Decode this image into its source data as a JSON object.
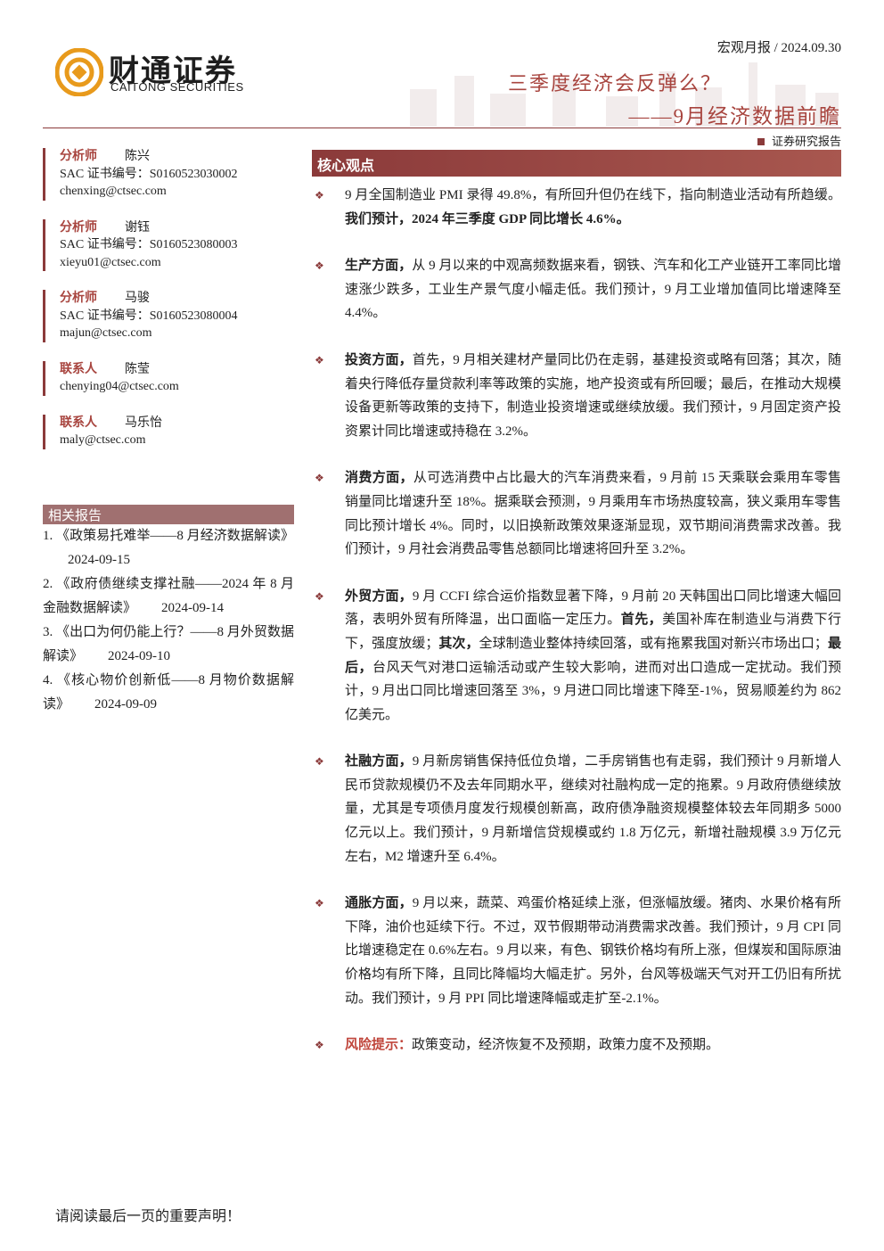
{
  "header": {
    "logo_cn": "财通证券",
    "logo_en": "CAITONG SECURITIES",
    "report_type": "宏观月报 / 2024.09.30",
    "title": "三季度经济会反弹么？",
    "subtitle": "——9月经济数据前瞻",
    "tag": "证券研究报告"
  },
  "analysts": [
    {
      "role": "分析师",
      "name": "陈兴",
      "cert": "SAC 证书编号：S0160523030002",
      "email": "chenxing@ctsec.com"
    },
    {
      "role": "分析师",
      "name": "谢钰",
      "cert": "SAC 证书编号：S0160523080003",
      "email": "xieyu01@ctsec.com"
    },
    {
      "role": "分析师",
      "name": "马骏",
      "cert": "SAC 证书编号：S0160523080004",
      "email": "majun@ctsec.com"
    },
    {
      "role": "联系人",
      "name": "陈莹",
      "email": "chenying04@ctsec.com"
    },
    {
      "role": "联系人",
      "name": "马乐怡",
      "email": "maly@ctsec.com"
    }
  ],
  "related": {
    "title": "相关报告",
    "items": [
      {
        "text": "1. 《政策易托难举——8 月经济数据解读》",
        "date": "2024-09-15"
      },
      {
        "text": "2. 《政府债继续支撑社融——2024 年 8 月金融数据解读》",
        "date": "2024-09-14"
      },
      {
        "text": "3. 《出口为何仍能上行？——8 月外贸数据解读》",
        "date": "2024-09-10"
      },
      {
        "text": "4. 《核心物价创新低——8 月物价数据解读》",
        "date": "2024-09-09"
      }
    ]
  },
  "core": {
    "title": "核心观点",
    "points": [
      {
        "runs": [
          {
            "text": "9 月全国制造业 PMI 录得 49.8%，有所回升但仍在线下，指向制造业活动有所趋缓。"
          },
          {
            "text": "我们预计，2024 年三季度 GDP 同比增长 4.6%。",
            "style": "bold"
          }
        ]
      },
      {
        "runs": [
          {
            "text": "生产方面，",
            "style": "bold"
          },
          {
            "text": "从 9 月以来的中观高频数据来看，钢铁、汽车和化工产业链开工率同比增速涨少跌多，工业生产景气度小幅走低。我们预计，9 月工业增加值同比增速降至 4.4%。"
          }
        ]
      },
      {
        "runs": [
          {
            "text": "投资方面，",
            "style": "bold"
          },
          {
            "text": "首先，9 月相关建材产量同比仍在走弱，基建投资或略有回落；其次，随着央行降低存量贷款利率等政策的实施，地产投资或有所回暖；最后，在推动大规模设备更新等政策的支持下，制造业投资增速或继续放缓。我们预计，9 月固定资产投资累计同比增速或持稳在 3.2%。"
          }
        ]
      },
      {
        "runs": [
          {
            "text": "消费方面，",
            "style": "bold"
          },
          {
            "text": "从可选消费中占比最大的汽车消费来看，9 月前 15 天乘联会乘用车零售销量同比增速升至 18%。据乘联会预测，9 月乘用车市场热度较高，狭义乘用车零售同比预计增长 4%。同时，以旧换新政策效果逐渐显现，双节期间消费需求改善。我们预计，9 月社会消费品零售总额同比增速将回升至 3.2%。"
          }
        ]
      },
      {
        "runs": [
          {
            "text": "外贸方面，",
            "style": "bold"
          },
          {
            "text": "9 月 CCFI 综合运价指数显著下降，9 月前 20 天韩国出口同比增速大幅回落，表明外贸有所降温，出口面临一定压力。"
          },
          {
            "text": "首先，",
            "style": "bold"
          },
          {
            "text": "美国补库在制造业与消费下行下，强度放缓；"
          },
          {
            "text": "其次，",
            "style": "bold"
          },
          {
            "text": "全球制造业整体持续回落，或有拖累我国对新兴市场出口；"
          },
          {
            "text": "最后，",
            "style": "bold"
          },
          {
            "text": "台风天气对港口运输活动或产生较大影响，进而对出口造成一定扰动。我们预计，9 月出口同比增速回落至 3%，9 月进口同比增速下降至-1%，贸易顺差约为 862 亿美元。"
          }
        ]
      },
      {
        "runs": [
          {
            "text": "社融方面，",
            "style": "bold"
          },
          {
            "text": "9 月新房销售保持低位负增，二手房销售也有走弱，我们预计 9 月新增人民币贷款规模仍不及去年同期水平，继续对社融构成一定的拖累。9 月政府债继续放量，尤其是专项债月度发行规模创新高，政府债净融资规模整体较去年同期多 5000 亿元以上。我们预计，9 月新增信贷规模或约 1.8 万亿元，新增社融规模 3.9 万亿元左右，M2 增速升至 6.4%。"
          }
        ]
      },
      {
        "runs": [
          {
            "text": "通胀方面，",
            "style": "bold"
          },
          {
            "text": "9 月以来，蔬菜、鸡蛋价格延续上涨，但涨幅放缓。猪肉、水果价格有所下降，油价也延续下行。不过，双节假期带动消费需求改善。我们预计，9 月 CPI 同比增速稳定在 0.6%左右。9 月以来，有色、钢铁价格均有所上涨，但煤炭和国际原油价格均有所下降，且同比降幅均大幅走扩。另外，台风等极端天气对开工仍旧有所扰动。我们预计，9 月 PPI 同比增速降幅或走扩至-2.1%。"
          }
        ]
      },
      {
        "runs": [
          {
            "text": "风险提示：",
            "style": "red"
          },
          {
            "text": "政策变动，经济恢复不及预期，政策力度不及预期。"
          }
        ]
      }
    ]
  },
  "footer": {
    "notice": "请阅读最后一页的重要声明！"
  }
}
